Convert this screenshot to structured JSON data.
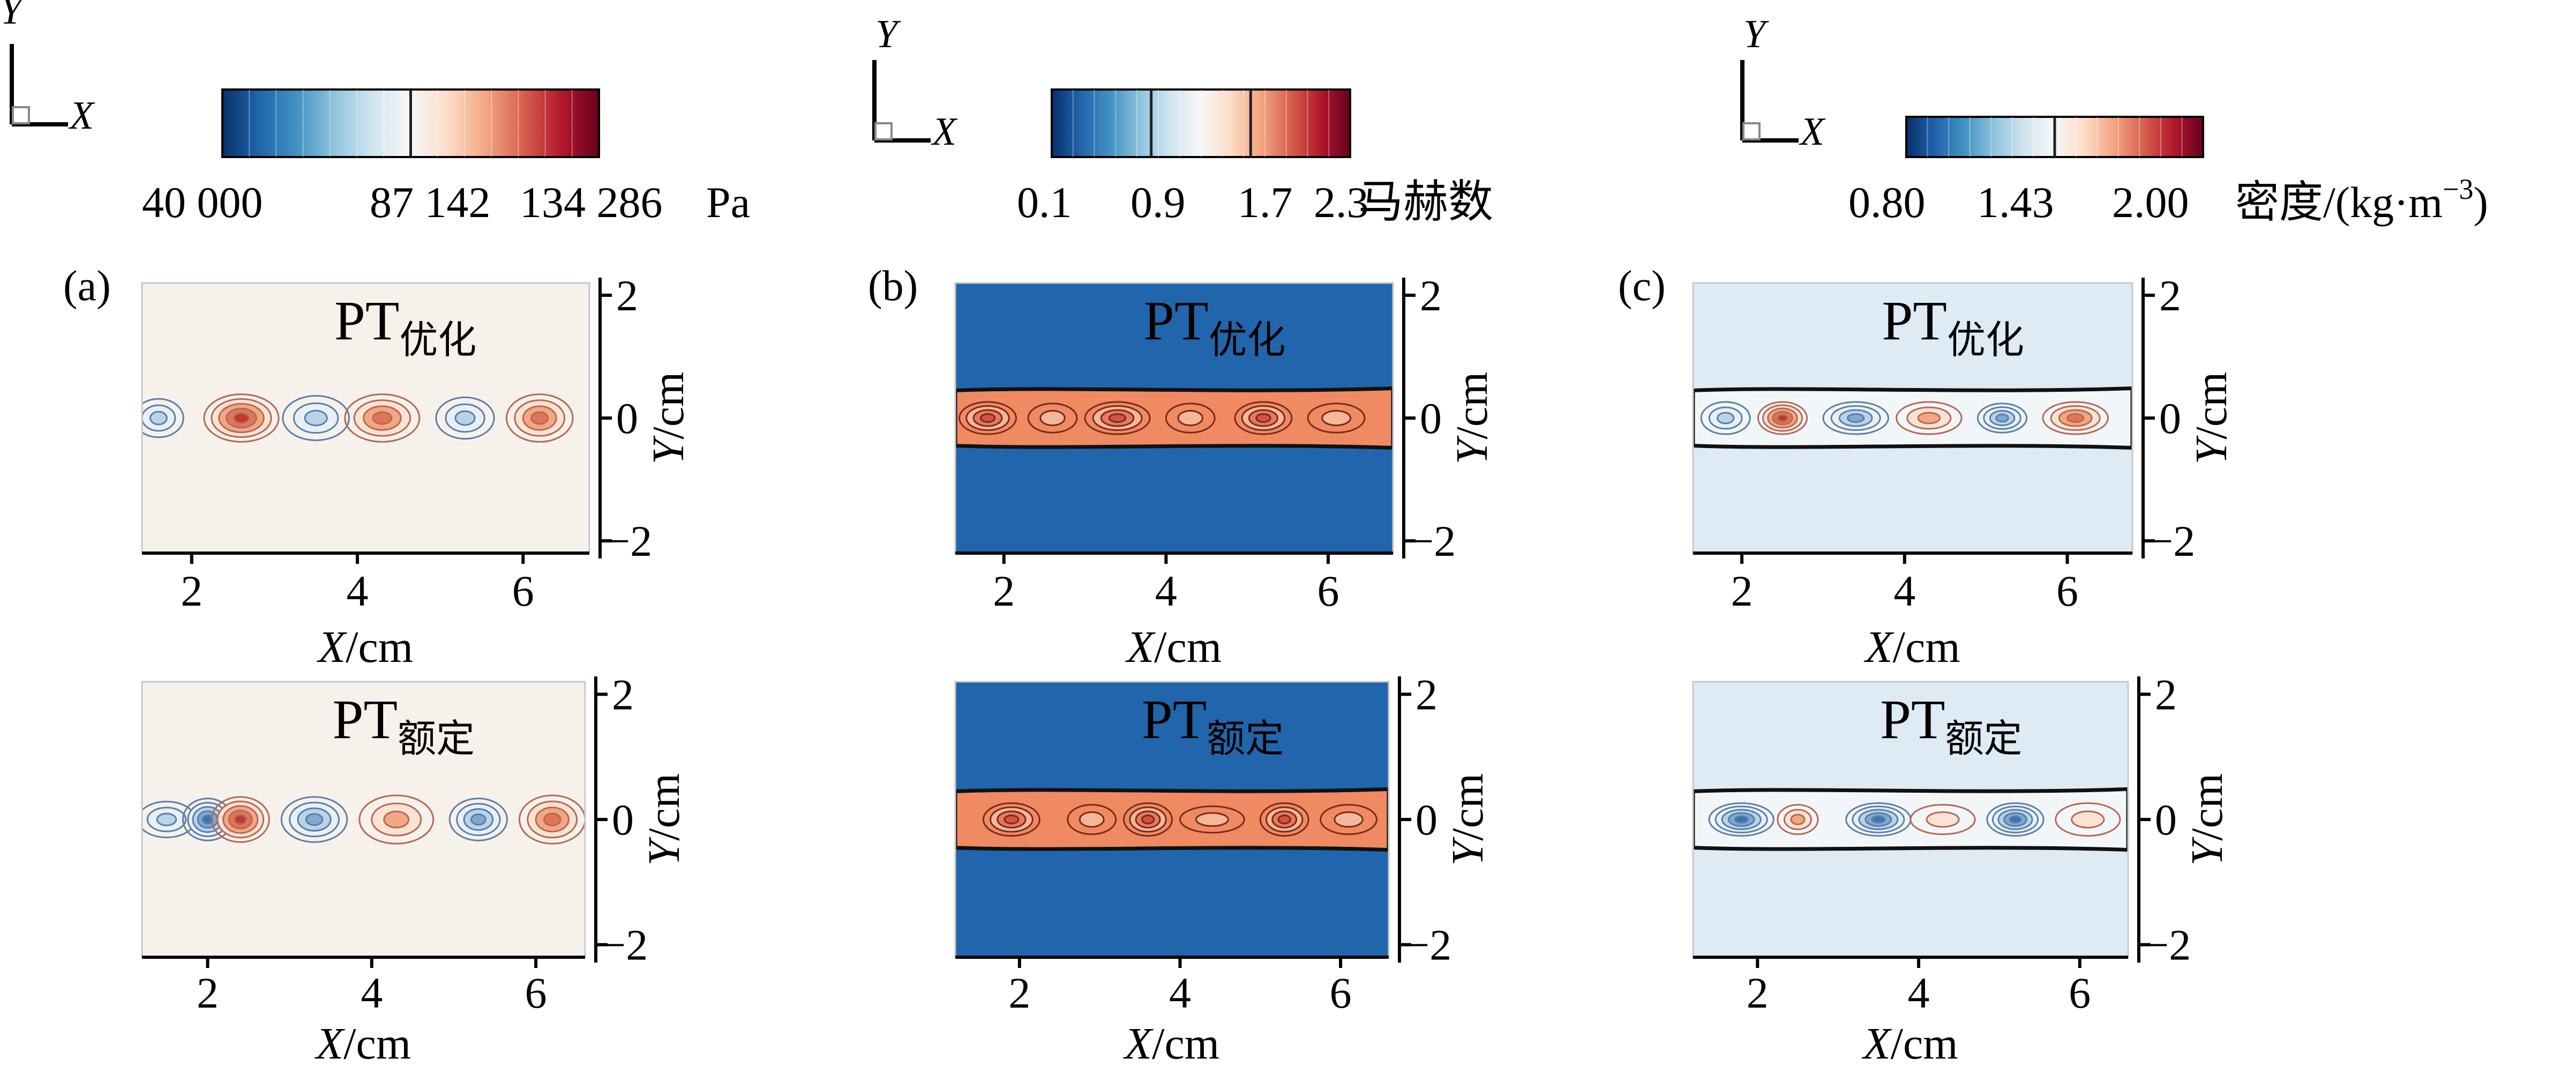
{
  "chart_data": [
    {
      "panel": "(a)",
      "quantity": "pressure",
      "type": "heatmap",
      "orientation_axes": {
        "x": "X",
        "y": "Y"
      },
      "colorbar": {
        "ticks": [
          "40 000",
          "87 142",
          "134 286"
        ],
        "unit": "Pa",
        "colors": [
          "#08306b",
          "#2166ac",
          "#4393c3",
          "#92c5de",
          "#d1e5f0",
          "#f7f7f7",
          "#fddbc7",
          "#f4a582",
          "#d6604d",
          "#b2182b",
          "#67001f"
        ]
      },
      "subplots": [
        {
          "label_main": "PT",
          "label_sub": "优化",
          "background": "#f7f1ec",
          "x_ticks": [
            2,
            4,
            6
          ],
          "y_ticks": [
            2,
            0,
            -2
          ],
          "xlim": [
            1.4,
            6.8
          ],
          "ylim": [
            -2.2,
            2.2
          ],
          "xlabel_var": "X",
          "xlabel_unit": "/cm",
          "ylabel_var": "Y",
          "ylabel_unit": "/cm",
          "cells": [
            {
              "x": 1.6,
              "w": 0.6,
              "h": 0.45,
              "kind": "lo1"
            },
            {
              "x": 2.6,
              "w": 0.9,
              "h": 0.6,
              "kind": "hi3"
            },
            {
              "x": 3.5,
              "w": 0.8,
              "h": 0.55,
              "kind": "lo1"
            },
            {
              "x": 4.3,
              "w": 0.9,
              "h": 0.6,
              "kind": "hi2"
            },
            {
              "x": 5.3,
              "w": 0.7,
              "h": 0.5,
              "kind": "lo1"
            },
            {
              "x": 6.2,
              "w": 0.8,
              "h": 0.6,
              "kind": "hi2"
            }
          ]
        },
        {
          "label_main": "PT",
          "label_sub": "额定",
          "background": "#f7f1ec",
          "x_ticks": [
            2,
            4,
            6
          ],
          "y_ticks": [
            2,
            0,
            -2
          ],
          "xlim": [
            1.2,
            6.6
          ],
          "ylim": [
            -2.2,
            2.2
          ],
          "xlabel_var": "X",
          "xlabel_unit": "/cm",
          "ylabel_var": "Y",
          "ylabel_unit": "/cm",
          "cells": [
            {
              "x": 1.5,
              "w": 0.7,
              "h": 0.4,
              "kind": "lo1"
            },
            {
              "x": 2.0,
              "w": 0.6,
              "h": 0.5,
              "kind": "lo3"
            },
            {
              "x": 2.4,
              "w": 0.7,
              "h": 0.55,
              "kind": "hi3"
            },
            {
              "x": 3.3,
              "w": 0.8,
              "h": 0.55,
              "kind": "lo2"
            },
            {
              "x": 4.3,
              "w": 0.9,
              "h": 0.6,
              "kind": "hi1"
            },
            {
              "x": 5.3,
              "w": 0.7,
              "h": 0.5,
              "kind": "lo2"
            },
            {
              "x": 6.2,
              "w": 0.8,
              "h": 0.6,
              "kind": "hi2"
            }
          ]
        }
      ]
    },
    {
      "panel": "(b)",
      "quantity": "Mach number",
      "type": "heatmap",
      "orientation_axes": {
        "x": "X",
        "y": "Y"
      },
      "colorbar": {
        "ticks": [
          "0.1",
          "0.9",
          "1.7",
          "2.3"
        ],
        "unit": "马赫数",
        "colors": [
          "#08306b",
          "#2166ac",
          "#4393c3",
          "#92c5de",
          "#d1e5f0",
          "#f7f7f7",
          "#fddbc7",
          "#f4a582",
          "#d6604d",
          "#b2182b",
          "#67001f"
        ]
      },
      "subplots": [
        {
          "label_main": "PT",
          "label_sub": "优化",
          "background": "#2166ac",
          "jet_color": "#ef8a62",
          "x_ticks": [
            2,
            4,
            6
          ],
          "y_ticks": [
            2,
            0,
            -2
          ],
          "xlim": [
            1.4,
            6.8
          ],
          "ylim": [
            -2.2,
            2.2
          ],
          "xlabel_var": "X",
          "xlabel_unit": "/cm",
          "ylabel_var": "Y",
          "ylabel_unit": "/cm",
          "jet_half_width": 0.45,
          "cells": [
            {
              "x": 1.8,
              "w": 0.7,
              "h": 0.35,
              "kind": "hi2"
            },
            {
              "x": 2.6,
              "w": 0.6,
              "h": 0.3,
              "kind": "hi0"
            },
            {
              "x": 3.4,
              "w": 0.8,
              "h": 0.35,
              "kind": "hi2"
            },
            {
              "x": 4.3,
              "w": 0.6,
              "h": 0.3,
              "kind": "hi0"
            },
            {
              "x": 5.2,
              "w": 0.7,
              "h": 0.35,
              "kind": "hi2"
            },
            {
              "x": 6.1,
              "w": 0.7,
              "h": 0.3,
              "kind": "hi0"
            }
          ]
        },
        {
          "label_main": "PT",
          "label_sub": "额定",
          "background": "#2166ac",
          "jet_color": "#ef8a62",
          "x_ticks": [
            2,
            4,
            6
          ],
          "y_ticks": [
            2,
            0,
            -2
          ],
          "xlim": [
            1.2,
            6.6
          ],
          "ylim": [
            -2.2,
            2.2
          ],
          "xlabel_var": "X",
          "xlabel_unit": "/cm",
          "ylabel_var": "Y",
          "ylabel_unit": "/cm",
          "jet_half_width": 0.45,
          "cells": [
            {
              "x": 1.9,
              "w": 0.7,
              "h": 0.35,
              "kind": "hi2"
            },
            {
              "x": 2.9,
              "w": 0.6,
              "h": 0.3,
              "kind": "hi0"
            },
            {
              "x": 3.6,
              "w": 0.6,
              "h": 0.35,
              "kind": "hi2"
            },
            {
              "x": 4.4,
              "w": 0.8,
              "h": 0.25,
              "kind": "hi0"
            },
            {
              "x": 5.3,
              "w": 0.6,
              "h": 0.35,
              "kind": "hi2"
            },
            {
              "x": 6.1,
              "w": 0.7,
              "h": 0.3,
              "kind": "hi0"
            }
          ]
        }
      ]
    },
    {
      "panel": "(c)",
      "quantity": "density",
      "type": "heatmap",
      "orientation_axes": {
        "x": "X",
        "y": "Y"
      },
      "colorbar": {
        "ticks": [
          "0.80",
          "1.43",
          "2.00"
        ],
        "unit_main": "密度/(kg·m",
        "unit_sup": "−3",
        "unit_close": ")",
        "colors": [
          "#08306b",
          "#2166ac",
          "#4393c3",
          "#92c5de",
          "#d1e5f0",
          "#f7f7f7",
          "#fddbc7",
          "#f4a582",
          "#d6604d",
          "#b2182b",
          "#67001f"
        ]
      },
      "subplots": [
        {
          "label_main": "PT",
          "label_sub": "优化",
          "background": "#deebf4",
          "x_ticks": [
            2,
            4,
            6
          ],
          "y_ticks": [
            2,
            0,
            -2
          ],
          "xlim": [
            1.4,
            6.8
          ],
          "ylim": [
            -2.2,
            2.2
          ],
          "xlabel_var": "X",
          "xlabel_unit": "/cm",
          "ylabel_var": "Y",
          "ylabel_unit": "/cm",
          "jet_half_width": 0.45,
          "cells": [
            {
              "x": 1.8,
              "w": 0.6,
              "h": 0.35,
              "kind": "lo1"
            },
            {
              "x": 2.5,
              "w": 0.6,
              "h": 0.35,
              "kind": "hi3"
            },
            {
              "x": 3.4,
              "w": 0.8,
              "h": 0.35,
              "kind": "lo2"
            },
            {
              "x": 4.3,
              "w": 0.8,
              "h": 0.35,
              "kind": "hi1"
            },
            {
              "x": 5.2,
              "w": 0.6,
              "h": 0.3,
              "kind": "lo2"
            },
            {
              "x": 6.1,
              "w": 0.8,
              "h": 0.35,
              "kind": "hi2"
            }
          ]
        },
        {
          "label_main": "PT",
          "label_sub": "额定",
          "background": "#deebf4",
          "x_ticks": [
            2,
            4,
            6
          ],
          "y_ticks": [
            2,
            0,
            -2
          ],
          "xlim": [
            1.2,
            6.6
          ],
          "ylim": [
            -2.2,
            2.2
          ],
          "xlabel_var": "X",
          "xlabel_unit": "/cm",
          "ylabel_var": "Y",
          "ylabel_unit": "/cm",
          "jet_half_width": 0.45,
          "cells": [
            {
              "x": 1.8,
              "w": 0.8,
              "h": 0.35,
              "kind": "lo3"
            },
            {
              "x": 2.5,
              "w": 0.5,
              "h": 0.3,
              "kind": "hi1"
            },
            {
              "x": 3.5,
              "w": 0.8,
              "h": 0.35,
              "kind": "lo3"
            },
            {
              "x": 4.3,
              "w": 0.8,
              "h": 0.3,
              "kind": "hi0"
            },
            {
              "x": 5.2,
              "w": 0.7,
              "h": 0.35,
              "kind": "lo3"
            },
            {
              "x": 6.1,
              "w": 0.8,
              "h": 0.35,
              "kind": "hi0"
            }
          ]
        }
      ]
    }
  ]
}
